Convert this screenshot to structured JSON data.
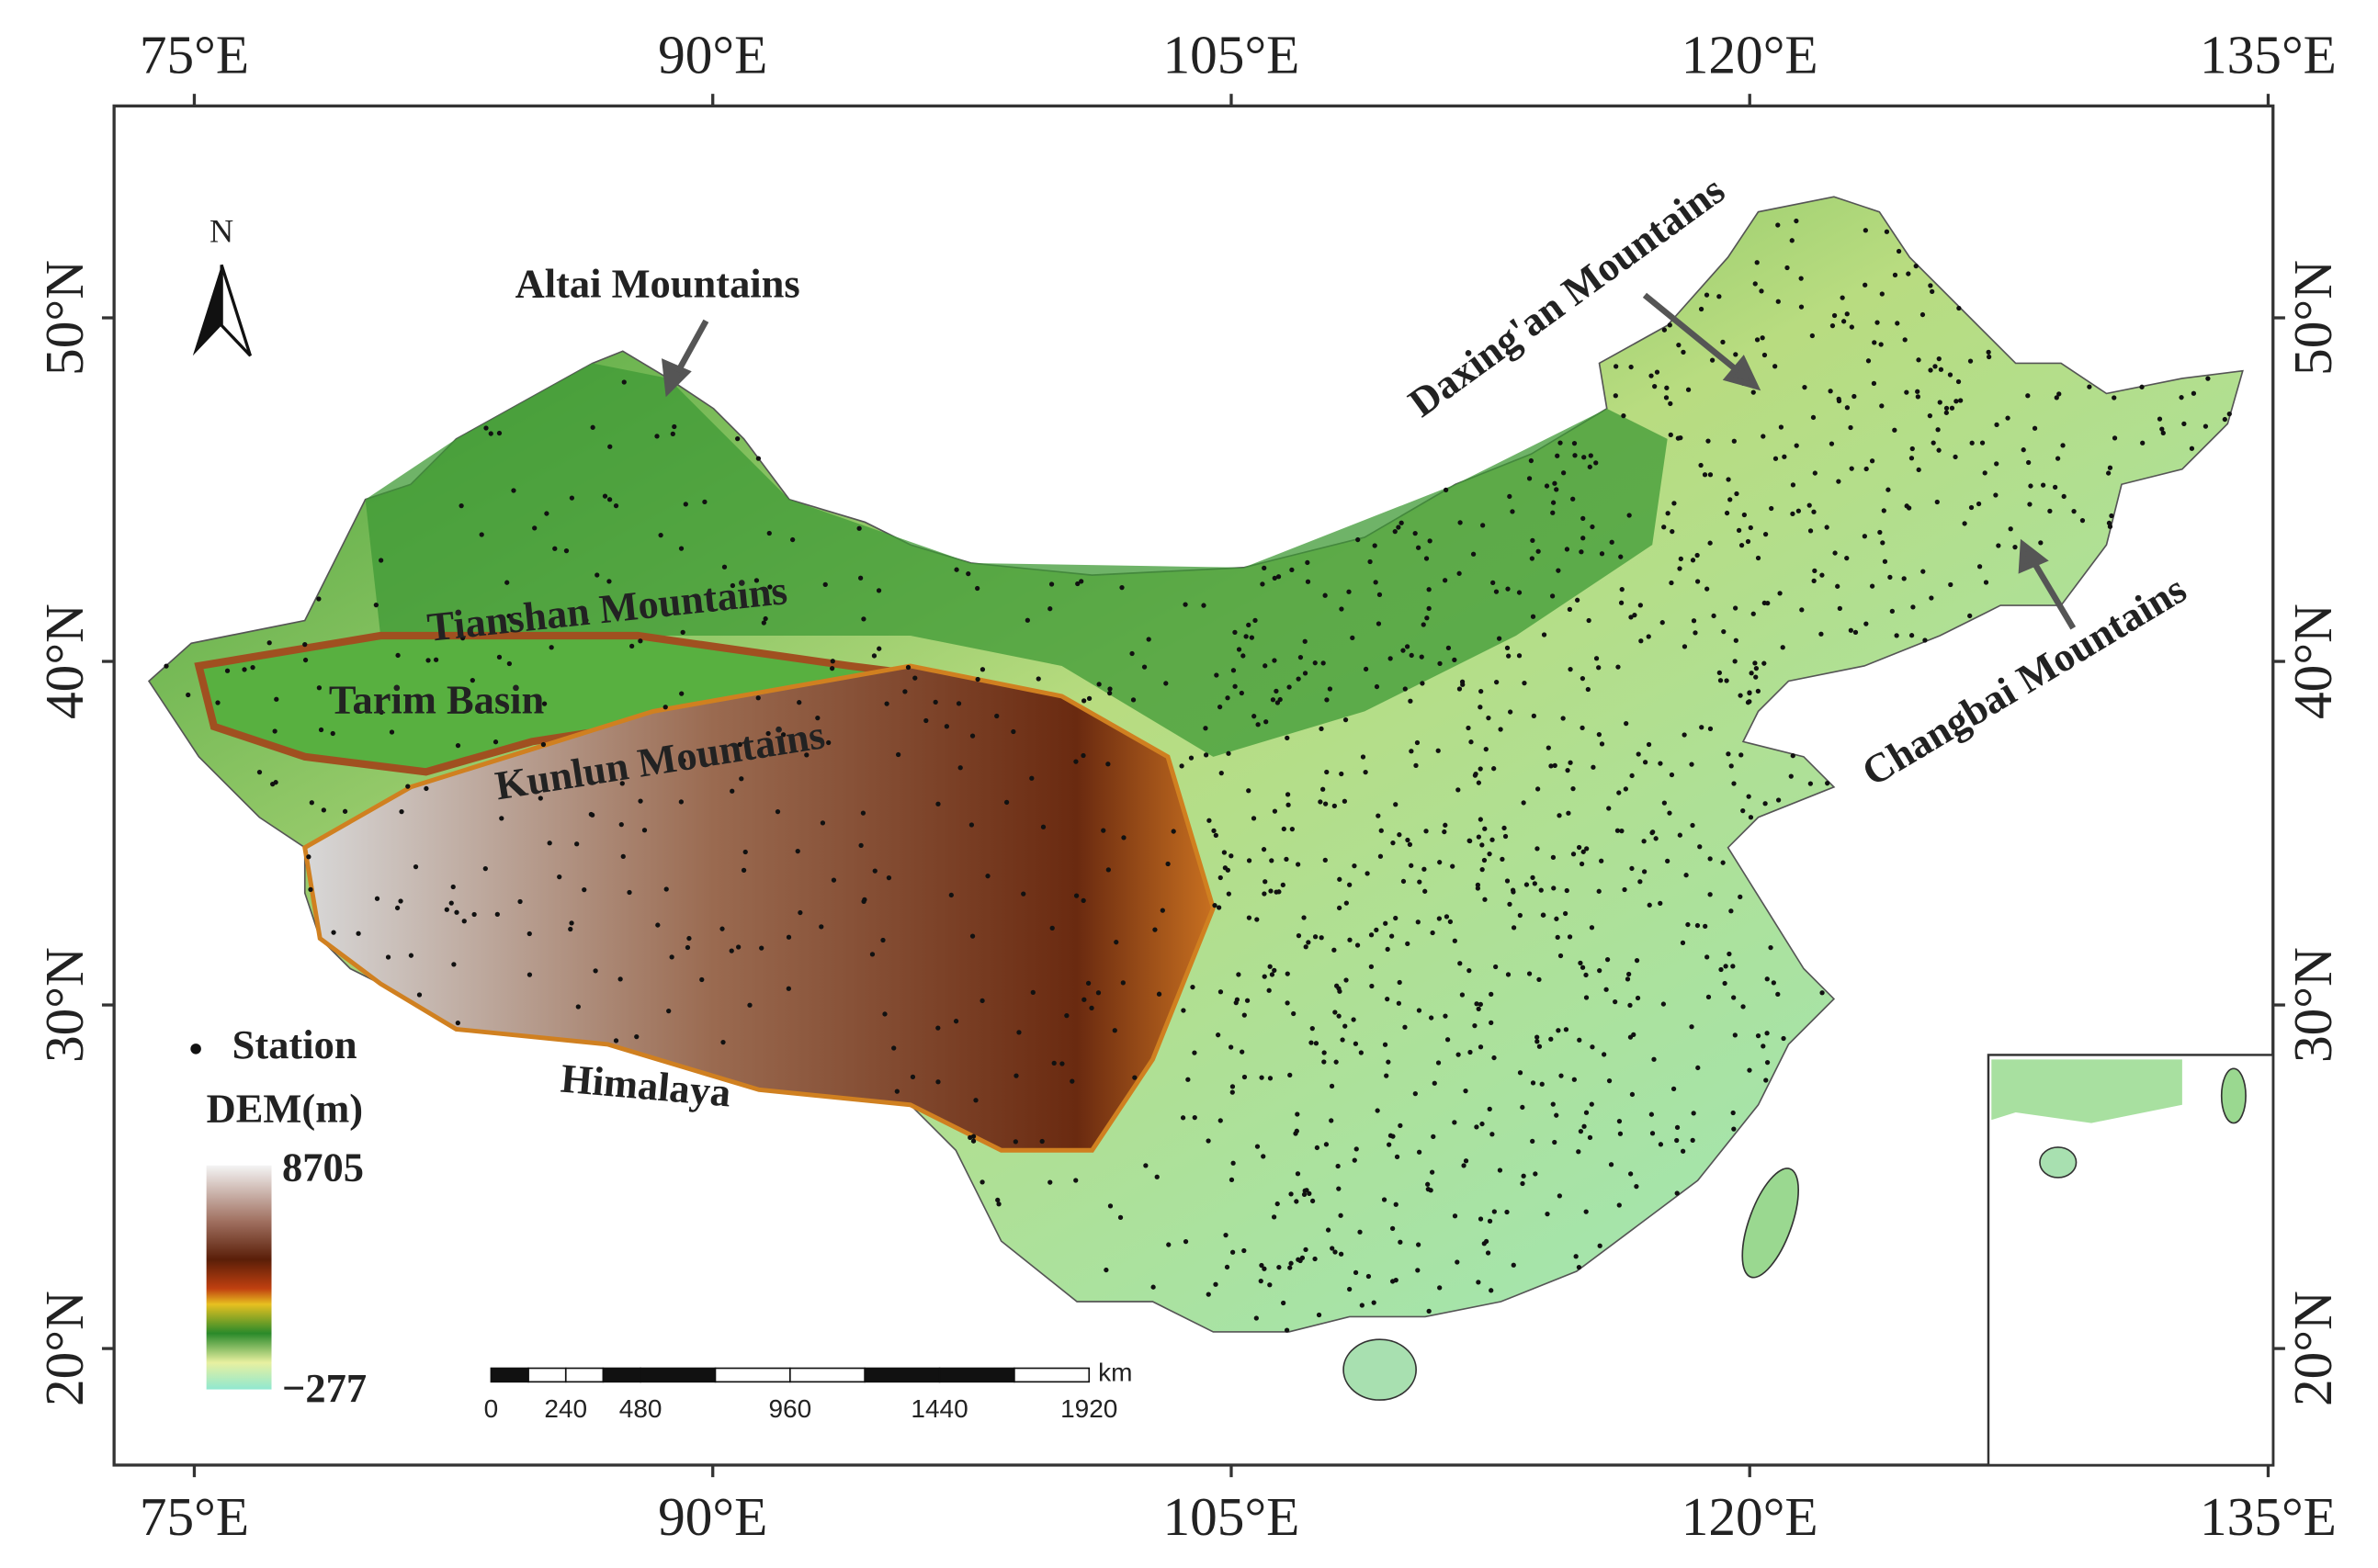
{
  "map": {
    "lon_ticks": [
      {
        "value": 75,
        "label": "75°E"
      },
      {
        "value": 90,
        "label": "90°E"
      },
      {
        "value": 105,
        "label": "105°E"
      },
      {
        "value": 120,
        "label": "120°E"
      },
      {
        "value": 135,
        "label": "135°E"
      }
    ],
    "lat_ticks": [
      {
        "value": 20,
        "label": "20°N"
      },
      {
        "value": 30,
        "label": "30°N"
      },
      {
        "value": 40,
        "label": "40°N"
      },
      {
        "value": 50,
        "label": "50°N"
      }
    ],
    "north": "N",
    "annotations": [
      "Altai Mountains",
      "Tianshan Mountains",
      "Tarim Basin",
      "Kunlun Mountains",
      "Himalaya",
      "Daxing'an Mountains",
      "Changbai Mountains"
    ],
    "legend": {
      "station": "Station",
      "dem_title": "DEM(m)",
      "dem_max": 8705,
      "dem_min": {
        "value": -277,
        "label": "−277"
      }
    },
    "scale_bar": {
      "unit": "km",
      "ticks": [
        0,
        240,
        480,
        960,
        1440,
        1920
      ]
    }
  }
}
